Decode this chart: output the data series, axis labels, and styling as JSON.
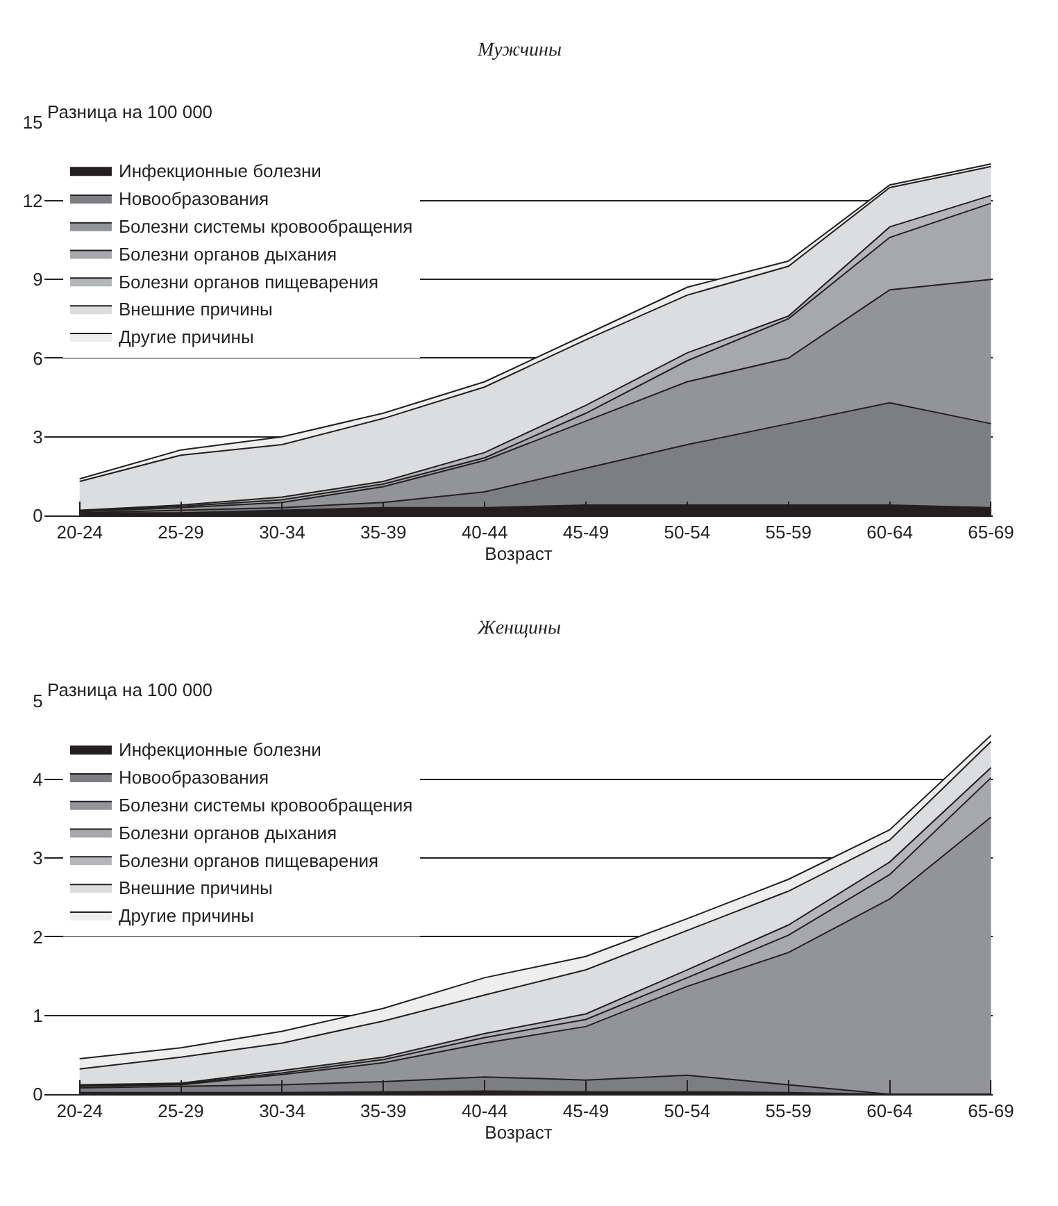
{
  "chart_data": [
    {
      "type": "area",
      "stacked": true,
      "title": "Мужчины",
      "xlabel": "Возраст",
      "ylabel": "Разница на 100 000",
      "categories": [
        "20-24",
        "25-29",
        "30-34",
        "35-39",
        "40-44",
        "45-49",
        "50-54",
        "55-59",
        "60-64",
        "65-69"
      ],
      "ylim": [
        0,
        15
      ],
      "yticks": [
        0,
        3,
        6,
        9,
        12,
        15
      ],
      "grid": "y",
      "legend": "top left",
      "series": [
        {
          "name": "Инфекционные болезни",
          "color": "#231f20",
          "values": [
            0.1,
            0.1,
            0.2,
            0.3,
            0.3,
            0.4,
            0.4,
            0.4,
            0.4,
            0.3
          ]
        },
        {
          "name": "Новообразования",
          "color": "#7d7e82",
          "values": [
            0.0,
            0.1,
            0.1,
            0.2,
            0.6,
            1.4,
            2.3,
            3.1,
            3.9,
            3.2
          ]
        },
        {
          "name": "Болезни системы кровообращения",
          "color": "#939497",
          "values": [
            0.05,
            0.1,
            0.2,
            0.6,
            1.2,
            1.8,
            2.4,
            2.5,
            4.3,
            5.5
          ]
        },
        {
          "name": "Болезни органов дыхания",
          "color": "#a7a8ab",
          "values": [
            0.02,
            0.05,
            0.1,
            0.1,
            0.1,
            0.3,
            0.8,
            1.5,
            2.0,
            2.9
          ]
        },
        {
          "name": "Болезни органов пищеварения",
          "color": "#b5b6b9",
          "values": [
            0.03,
            0.05,
            0.1,
            0.1,
            0.2,
            0.3,
            0.3,
            0.1,
            0.4,
            0.3
          ]
        },
        {
          "name": "Внешние причины",
          "color": "#dcdddf",
          "values": [
            1.1,
            1.9,
            2.0,
            2.4,
            2.5,
            2.5,
            2.2,
            1.9,
            1.5,
            1.1
          ]
        },
        {
          "name": "Другие причины",
          "color": "#eeeeee",
          "values": [
            0.1,
            0.2,
            0.3,
            0.2,
            0.2,
            0.2,
            0.3,
            0.2,
            0.1,
            0.1
          ]
        }
      ]
    },
    {
      "type": "area",
      "stacked": true,
      "title": "Женщины",
      "xlabel": "Возраст",
      "ylabel": "Разница на 100 000",
      "categories": [
        "20-24",
        "25-29",
        "30-34",
        "35-39",
        "40-44",
        "45-49",
        "50-54",
        "55-59",
        "60-64",
        "65-69"
      ],
      "ylim": [
        0,
        5
      ],
      "yticks": [
        0,
        1,
        2,
        3,
        4,
        5
      ],
      "grid": "y",
      "legend": "top left",
      "series": [
        {
          "name": "Инфекционные болезни",
          "color": "#231f20",
          "values": [
            0.02,
            0.02,
            0.02,
            0.03,
            0.04,
            0.03,
            0.03,
            0.02,
            0,
            0
          ]
        },
        {
          "name": "Новообразования",
          "color": "#7d7e82",
          "values": [
            0.06,
            0.08,
            0.1,
            0.13,
            0.18,
            0.15,
            0.21,
            0.1,
            0,
            0
          ]
        },
        {
          "name": "Болезни системы кровообращения",
          "color": "#939497",
          "values": [
            0.02,
            0.02,
            0.13,
            0.24,
            0.43,
            0.68,
            1.13,
            1.68,
            2.48,
            3.52
          ]
        },
        {
          "name": "Болезни органов дыхания",
          "color": "#a7a8ab",
          "values": [
            0.01,
            0.01,
            0.02,
            0.04,
            0.07,
            0.09,
            0.11,
            0.22,
            0.31,
            0.5
          ]
        },
        {
          "name": "Болезни органов пищеварения",
          "color": "#b5b6b9",
          "values": [
            0.01,
            0.01,
            0.03,
            0.03,
            0.05,
            0.07,
            0.1,
            0.13,
            0.16,
            0.13
          ]
        },
        {
          "name": "Внешние причины",
          "color": "#dcdddf",
          "values": [
            0.2,
            0.33,
            0.35,
            0.46,
            0.49,
            0.56,
            0.5,
            0.43,
            0.28,
            0.33
          ]
        },
        {
          "name": "Другие причины",
          "color": "#eeeeee",
          "values": [
            0.13,
            0.12,
            0.15,
            0.16,
            0.22,
            0.17,
            0.15,
            0.15,
            0.13,
            0.08
          ]
        }
      ]
    }
  ]
}
